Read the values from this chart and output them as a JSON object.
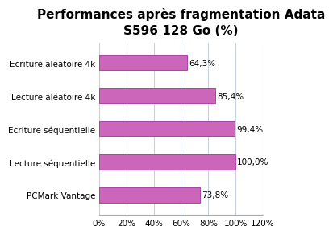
{
  "title": "Performances après fragmentation Adata\nS596 128 Go (%)",
  "categories": [
    "PCMark Vantage",
    "Lecture séquentielle",
    "Ecriture séquentielle",
    "Lecture aléatoire 4k",
    "Ecriture aléatoire 4k"
  ],
  "values": [
    73.8,
    100.0,
    99.4,
    85.4,
    64.3
  ],
  "bar_color": "#cc66bb",
  "bar_edge_color": "#aa44aa",
  "label_texts": [
    "73,8%",
    "100,0%",
    "99,4%",
    "85,4%",
    "64,3%"
  ],
  "xlim": [
    0,
    120
  ],
  "xticks": [
    0,
    20,
    40,
    60,
    80,
    100,
    120
  ],
  "xtick_labels": [
    "0%",
    "20%",
    "40%",
    "60%",
    "80%",
    "100%",
    "120%"
  ],
  "title_fontsize": 11,
  "label_fontsize": 7.5,
  "tick_fontsize": 7.5,
  "background_color": "#ffffff",
  "grid_color": "#c8d0dc"
}
